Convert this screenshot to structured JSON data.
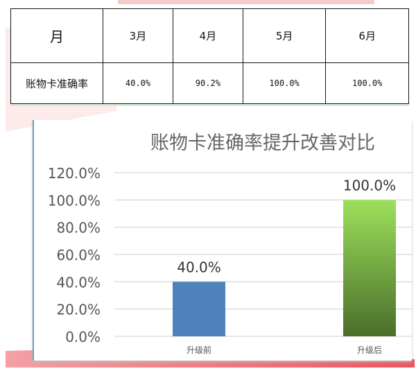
{
  "table": {
    "header": [
      "月",
      "3月",
      "4月",
      "5月",
      "6月"
    ],
    "row": [
      "账物卡准确率",
      "40.0%",
      "90.2%",
      "100.0%",
      "100.0%"
    ]
  },
  "chart_data": {
    "type": "bar",
    "title": "账物卡准确率提升改善对比",
    "categories": [
      "升级前",
      "升级后"
    ],
    "values": [
      40.0,
      100.0
    ],
    "data_labels": [
      "40.0%",
      "100.0%"
    ],
    "yticks": [
      "0.0%",
      "20.0%",
      "40.0%",
      "60.0%",
      "80.0%",
      "100.0%",
      "120.0%"
    ],
    "ylim": [
      0,
      120
    ],
    "grid": true,
    "colors": [
      "#4f81bd",
      "gradient #9de05c to #4a6e2a"
    ]
  }
}
